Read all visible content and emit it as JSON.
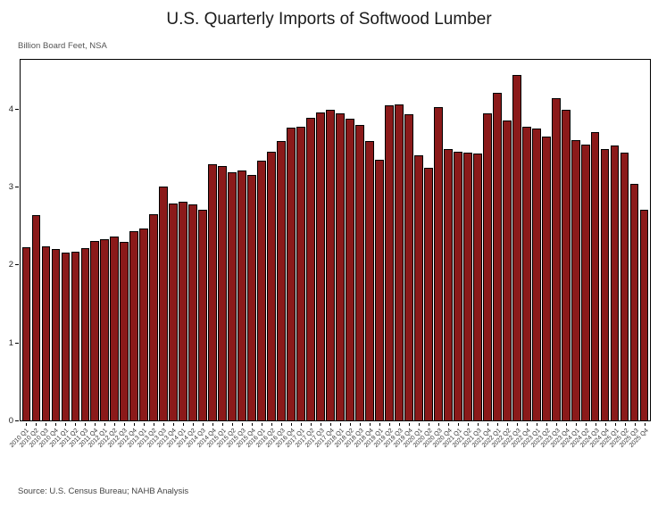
{
  "chart_data": {
    "type": "bar",
    "title": "U.S. Quarterly Imports of Softwood Lumber",
    "units_label": "Billion Board Feet, NSA",
    "source": "Source: U.S. Census Bureau; NAHB Analysis",
    "xlabel": "",
    "ylabel": "Billion Board Feet",
    "ylim": [
      0,
      4.65
    ],
    "yticks": [
      0,
      1,
      2,
      3,
      4
    ],
    "grid": false,
    "legend": "none",
    "bar_color": "#8b1a1a",
    "bar_edge_color": "#000000",
    "categories": [
      "2010 Q1",
      "2010 Q2",
      "2010 Q3",
      "2010 Q4",
      "2011 Q1",
      "2011 Q2",
      "2011 Q3",
      "2011 Q4",
      "2012 Q1",
      "2012 Q2",
      "2012 Q3",
      "2012 Q4",
      "2013 Q1",
      "2013 Q2",
      "2013 Q3",
      "2013 Q4",
      "2014 Q1",
      "2014 Q2",
      "2014 Q3",
      "2014 Q4",
      "2015 Q1",
      "2015 Q2",
      "2015 Q3",
      "2015 Q4",
      "2016 Q1",
      "2016 Q2",
      "2016 Q3",
      "2016 Q4",
      "2017 Q1",
      "2017 Q2",
      "2017 Q3",
      "2017 Q4",
      "2018 Q1",
      "2018 Q2",
      "2018 Q3",
      "2018 Q4",
      "2019 Q1",
      "2019 Q2",
      "2019 Q3",
      "2019 Q4",
      "2020 Q1",
      "2020 Q2",
      "2020 Q3",
      "2020 Q4",
      "2021 Q1",
      "2021 Q2",
      "2021 Q3",
      "2021 Q4",
      "2022 Q1",
      "2022 Q2",
      "2022 Q3",
      "2022 Q4",
      "2023 Q1",
      "2023 Q2",
      "2023 Q3",
      "2023 Q4",
      "2024 Q1",
      "2024 Q2",
      "2024 Q3",
      "2024 Q4",
      "2025 Q1",
      "2025 Q2",
      "2025 Q3",
      "2025 Q4"
    ],
    "values": [
      2.23,
      2.65,
      2.25,
      2.21,
      2.16,
      2.18,
      2.22,
      2.31,
      2.34,
      2.37,
      2.3,
      2.44,
      2.47,
      2.66,
      3.02,
      2.8,
      2.82,
      2.79,
      2.72,
      3.3,
      3.28,
      3.2,
      3.22,
      3.17,
      3.35,
      3.46,
      3.6,
      3.77,
      3.79,
      3.9,
      3.97,
      4.0,
      3.96,
      3.89,
      3.81,
      3.6,
      3.36,
      4.06,
      4.08,
      3.95,
      3.42,
      3.26,
      4.04,
      3.5,
      3.46,
      3.45,
      3.44,
      3.96,
      4.22,
      3.87,
      4.45,
      3.79,
      3.76,
      3.66,
      4.15,
      4.0,
      3.61,
      3.56,
      3.72,
      3.5,
      3.55,
      3.45,
      3.05,
      2.72
    ]
  }
}
